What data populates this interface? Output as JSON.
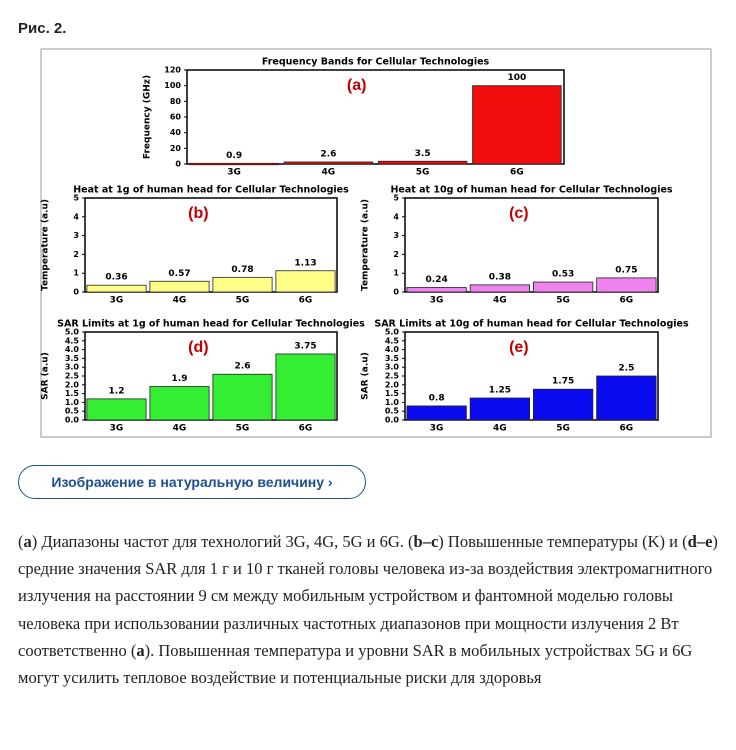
{
  "figure_label": "Рис. 2.",
  "chart_data": [
    {
      "type": "bar",
      "title": "Frequency Bands for Cellular Technologies",
      "panel": "(a)",
      "y_label": "Frequency (GHz)",
      "categories": [
        "3G",
        "4G",
        "5G",
        "6G"
      ],
      "values": [
        0.9,
        2.6,
        3.5,
        100
      ],
      "color": "#f20d0d",
      "ylim": [
        0,
        120
      ],
      "yticks": [
        0,
        20,
        40,
        60,
        80,
        100,
        120
      ]
    },
    {
      "type": "bar",
      "title": "Heat at 1g of human head for Cellular Technologies",
      "panel": "(b)",
      "y_label": "Temperature (a.u)",
      "categories": [
        "3G",
        "4G",
        "5G",
        "6G"
      ],
      "values": [
        0.36,
        0.57,
        0.78,
        1.13
      ],
      "color": "#ffff88",
      "ylim": [
        0,
        5
      ],
      "yticks": [
        0,
        1,
        2,
        3,
        4,
        5
      ]
    },
    {
      "type": "bar",
      "title": "Heat at 10g of human head for Cellular Technologies",
      "panel": "(c)",
      "y_label": "Temperature (a.u)",
      "categories": [
        "3G",
        "4G",
        "5G",
        "6G"
      ],
      "values": [
        0.24,
        0.38,
        0.53,
        0.75
      ],
      "color": "#ee82ee",
      "ylim": [
        0,
        5
      ],
      "yticks": [
        0,
        1,
        2,
        3,
        4,
        5
      ]
    },
    {
      "type": "bar",
      "title": "SAR Limits at 1g of human head for Cellular Technologies",
      "panel": "(d)",
      "y_label": "SAR (a.u)",
      "categories": [
        "3G",
        "4G",
        "5G",
        "6G"
      ],
      "values": [
        1.2,
        1.9,
        2.6,
        3.75
      ],
      "color": "#33ee33",
      "ylim": [
        0,
        5
      ],
      "yticks": [
        {
          "value": 0,
          "label": "0.0"
        },
        0.5,
        {
          "value": 1,
          "label": "1.0"
        },
        1.5,
        {
          "value": 2,
          "label": "2.0"
        },
        2.5,
        {
          "value": 3,
          "label": "3.0"
        },
        3.5,
        {
          "value": 4,
          "label": "4.0"
        },
        4.5,
        {
          "value": 5,
          "label": "5.0"
        }
      ]
    },
    {
      "type": "bar",
      "title": "SAR Limits at 10g of human head for Cellular Technologies",
      "panel": "(e)",
      "y_label": "SAR (a.u)",
      "categories": [
        "3G",
        "4G",
        "5G",
        "6G"
      ],
      "values": [
        0.8,
        1.25,
        1.75,
        2.5
      ],
      "color": "#0a0aee",
      "ylim": [
        0,
        5
      ],
      "yticks": [
        {
          "value": 0,
          "label": "0.0"
        },
        0.5,
        {
          "value": 1,
          "label": "1.0"
        },
        1.5,
        {
          "value": 2,
          "label": "2.0"
        },
        2.5,
        {
          "value": 3,
          "label": "3.0"
        },
        3.5,
        {
          "value": 4,
          "label": "4.0"
        },
        4.5,
        {
          "value": 5,
          "label": "5.0"
        }
      ]
    }
  ],
  "button": "Изображение в натуральную величину ›",
  "caption": [
    "(",
    "a",
    ") Диапазоны частот для технологий 3G, 4G, 5G и 6G. (",
    "b–c",
    ") Повышенные температуры (K) и (",
    "d–e",
    ") средние значения SAR для 1 г и 10 г тканей головы человека из-за воздействия электромагнитного излучения на расстоянии 9 см между мобильным устройством и фантомной моделью головы человека при использовании различных частотных диапазонов при мощности излучения 2 Вт соответственно (",
    "a",
    "). Повышенная температура и уровни SAR в мобильных устройствах 5G и 6G могут усилить тепловое воздействие и потенциальные риски для здоровья"
  ]
}
